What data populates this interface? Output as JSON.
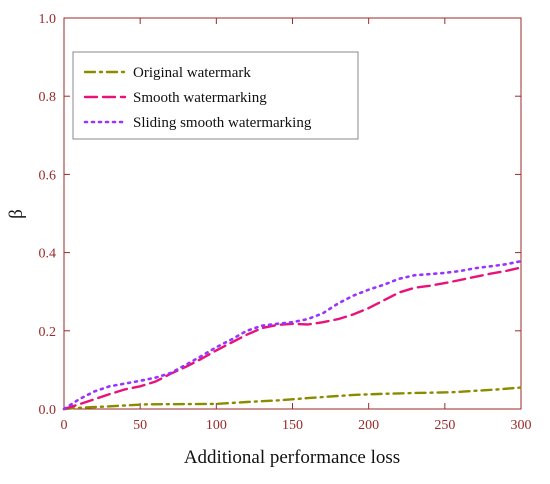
{
  "chart_data": {
    "type": "line",
    "xlabel": "Additional performance loss",
    "ylabel": "β",
    "xlim": [
      0,
      300
    ],
    "ylim": [
      0,
      1.0
    ],
    "x_ticks": [
      "0",
      "50",
      "100",
      "150",
      "200",
      "250",
      "300"
    ],
    "y_ticks": [
      "0.0",
      "0.2",
      "0.4",
      "0.6",
      "0.8",
      "1.0"
    ],
    "x_tick_values": [
      0,
      50,
      100,
      150,
      200,
      250,
      300
    ],
    "y_tick_values": [
      0.0,
      0.2,
      0.4,
      0.6,
      0.8,
      1.0
    ],
    "grid": false,
    "legend_position": "top-left",
    "axis_color": "#9b2a2a",
    "series": [
      {
        "name": "Original watermark",
        "color": "#8b8b00",
        "style": "dashdot",
        "x": [
          0,
          10,
          25,
          40,
          55,
          100,
          120,
          140,
          160,
          190,
          210,
          230,
          255,
          285,
          300
        ],
        "y": [
          0.0,
          0.003,
          0.006,
          0.009,
          0.012,
          0.013,
          0.018,
          0.022,
          0.028,
          0.036,
          0.039,
          0.041,
          0.043,
          0.05,
          0.055
        ]
      },
      {
        "name": "Smooth watermarking",
        "color": "#e8137a",
        "style": "dash",
        "x": [
          0,
          10,
          20,
          30,
          40,
          50,
          60,
          70,
          80,
          90,
          100,
          110,
          120,
          130,
          140,
          150,
          160,
          170,
          180,
          190,
          200,
          210,
          220,
          230,
          240,
          250,
          260,
          270,
          280,
          290,
          300
        ],
        "y": [
          0.0,
          0.012,
          0.025,
          0.038,
          0.05,
          0.058,
          0.07,
          0.09,
          0.108,
          0.128,
          0.15,
          0.17,
          0.19,
          0.207,
          0.215,
          0.218,
          0.216,
          0.222,
          0.23,
          0.242,
          0.258,
          0.278,
          0.298,
          0.31,
          0.315,
          0.322,
          0.33,
          0.338,
          0.346,
          0.353,
          0.362
        ]
      },
      {
        "name": "Sliding smooth watermarking",
        "color": "#9933ff",
        "style": "dot",
        "x": [
          0,
          10,
          20,
          30,
          40,
          50,
          60,
          70,
          80,
          90,
          100,
          110,
          120,
          130,
          140,
          150,
          160,
          170,
          180,
          190,
          200,
          210,
          220,
          230,
          240,
          250,
          260,
          270,
          280,
          290,
          300
        ],
        "y": [
          0.0,
          0.025,
          0.045,
          0.058,
          0.065,
          0.072,
          0.08,
          0.092,
          0.113,
          0.135,
          0.158,
          0.178,
          0.2,
          0.213,
          0.218,
          0.222,
          0.23,
          0.245,
          0.27,
          0.29,
          0.305,
          0.318,
          0.333,
          0.342,
          0.345,
          0.348,
          0.353,
          0.36,
          0.365,
          0.37,
          0.378
        ]
      }
    ]
  }
}
